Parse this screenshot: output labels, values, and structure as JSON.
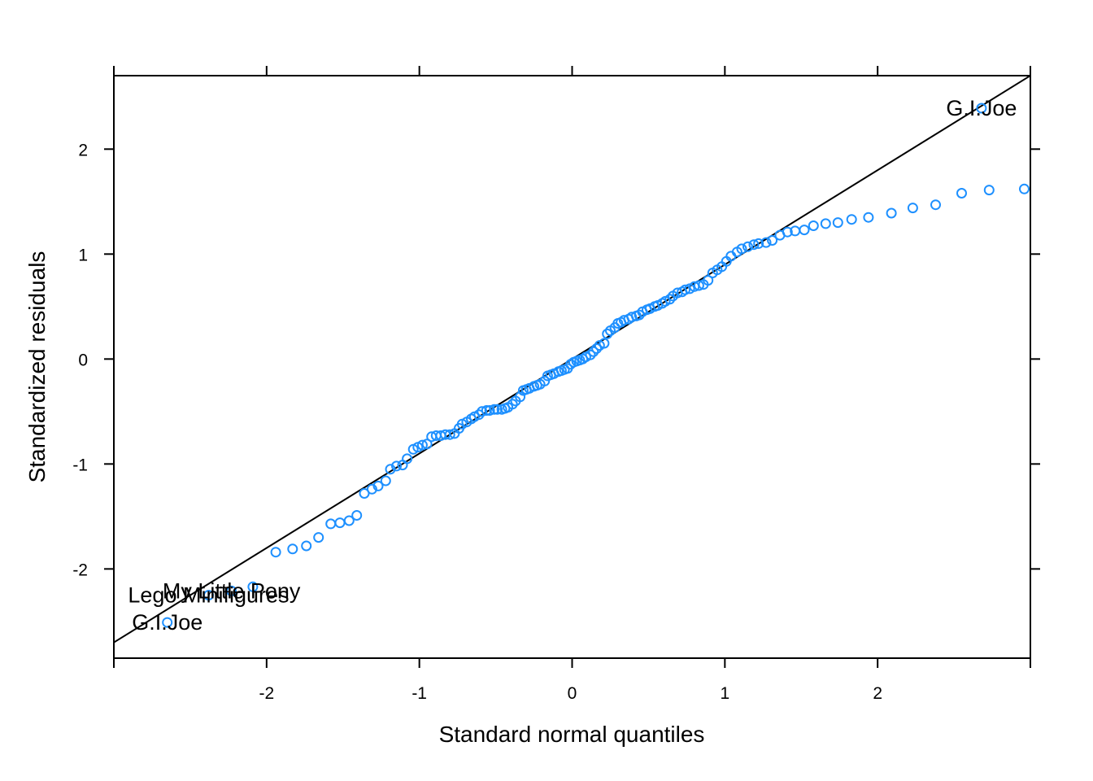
{
  "chart_data": {
    "type": "scatter",
    "title": "",
    "xlabel": "Standard normal quantiles",
    "ylabel": "Standardized residuals",
    "xlim": [
      -3.0,
      3.0
    ],
    "ylim": [
      -2.85,
      2.7
    ],
    "grid": false,
    "legend": "none",
    "x_ticks": [
      -2,
      -1,
      0,
      1,
      2
    ],
    "y_ticks": [
      -2,
      -1,
      0,
      1,
      2
    ],
    "x_tick_labels": [
      "-2",
      "-1",
      "0",
      "1",
      "2"
    ],
    "y_tick_labels": [
      "-2",
      "-1",
      "0",
      "1",
      "2"
    ],
    "reference_line": {
      "slope": 0.9,
      "intercept": 0.0
    },
    "colors": {
      "points": "#1e90ff",
      "line": "#000000",
      "frame": "#000000"
    },
    "points": [
      [
        -2.65,
        -2.51
      ],
      [
        -2.38,
        -2.25
      ],
      [
        -2.23,
        -2.21
      ],
      [
        -2.09,
        -2.17
      ],
      [
        -1.94,
        -1.84
      ],
      [
        -1.83,
        -1.81
      ],
      [
        -1.74,
        -1.78
      ],
      [
        -1.66,
        -1.7
      ],
      [
        -1.58,
        -1.57
      ],
      [
        -1.52,
        -1.56
      ],
      [
        -1.46,
        -1.54
      ],
      [
        -1.41,
        -1.49
      ],
      [
        -1.36,
        -1.28
      ],
      [
        -1.31,
        -1.24
      ],
      [
        -1.27,
        -1.21
      ],
      [
        -1.22,
        -1.16
      ],
      [
        -1.19,
        -1.05
      ],
      [
        -1.15,
        -1.02
      ],
      [
        -1.11,
        -1.01
      ],
      [
        -1.08,
        -0.95
      ],
      [
        -1.04,
        -0.86
      ],
      [
        -1.01,
        -0.84
      ],
      [
        -0.98,
        -0.82
      ],
      [
        -0.95,
        -0.81
      ],
      [
        -0.92,
        -0.74
      ],
      [
        -0.89,
        -0.73
      ],
      [
        -0.86,
        -0.73
      ],
      [
        -0.83,
        -0.72
      ],
      [
        -0.8,
        -0.72
      ],
      [
        -0.77,
        -0.71
      ],
      [
        -0.74,
        -0.66
      ],
      [
        -0.72,
        -0.62
      ],
      [
        -0.69,
        -0.6
      ],
      [
        -0.66,
        -0.57
      ],
      [
        -0.64,
        -0.55
      ],
      [
        -0.61,
        -0.53
      ],
      [
        -0.59,
        -0.5
      ],
      [
        -0.56,
        -0.49
      ],
      [
        -0.54,
        -0.49
      ],
      [
        -0.51,
        -0.48
      ],
      [
        -0.49,
        -0.48
      ],
      [
        -0.46,
        -0.48
      ],
      [
        -0.44,
        -0.47
      ],
      [
        -0.42,
        -0.46
      ],
      [
        -0.39,
        -0.43
      ],
      [
        -0.37,
        -0.4
      ],
      [
        -0.34,
        -0.36
      ],
      [
        -0.32,
        -0.3
      ],
      [
        -0.3,
        -0.29
      ],
      [
        -0.28,
        -0.28
      ],
      [
        -0.25,
        -0.26
      ],
      [
        -0.23,
        -0.25
      ],
      [
        -0.21,
        -0.24
      ],
      [
        -0.18,
        -0.21
      ],
      [
        -0.16,
        -0.16
      ],
      [
        -0.14,
        -0.15
      ],
      [
        -0.12,
        -0.14
      ],
      [
        -0.09,
        -0.12
      ],
      [
        -0.07,
        -0.11
      ],
      [
        -0.05,
        -0.1
      ],
      [
        -0.03,
        -0.09
      ],
      [
        -0.01,
        -0.05
      ],
      [
        0.01,
        -0.03
      ],
      [
        0.03,
        -0.02
      ],
      [
        0.05,
        -0.01
      ],
      [
        0.07,
        0.0
      ],
      [
        0.09,
        0.02
      ],
      [
        0.12,
        0.04
      ],
      [
        0.14,
        0.07
      ],
      [
        0.16,
        0.1
      ],
      [
        0.18,
        0.13
      ],
      [
        0.21,
        0.15
      ],
      [
        0.23,
        0.24
      ],
      [
        0.25,
        0.27
      ],
      [
        0.28,
        0.3
      ],
      [
        0.3,
        0.34
      ],
      [
        0.32,
        0.35
      ],
      [
        0.34,
        0.37
      ],
      [
        0.37,
        0.38
      ],
      [
        0.39,
        0.4
      ],
      [
        0.42,
        0.41
      ],
      [
        0.44,
        0.42
      ],
      [
        0.46,
        0.45
      ],
      [
        0.49,
        0.47
      ],
      [
        0.51,
        0.48
      ],
      [
        0.54,
        0.5
      ],
      [
        0.56,
        0.51
      ],
      [
        0.59,
        0.53
      ],
      [
        0.61,
        0.55
      ],
      [
        0.64,
        0.57
      ],
      [
        0.66,
        0.6
      ],
      [
        0.69,
        0.63
      ],
      [
        0.72,
        0.64
      ],
      [
        0.74,
        0.66
      ],
      [
        0.77,
        0.67
      ],
      [
        0.8,
        0.69
      ],
      [
        0.83,
        0.7
      ],
      [
        0.86,
        0.71
      ],
      [
        0.89,
        0.75
      ],
      [
        0.92,
        0.82
      ],
      [
        0.95,
        0.85
      ],
      [
        0.98,
        0.88
      ],
      [
        1.01,
        0.93
      ],
      [
        1.04,
        0.98
      ],
      [
        1.08,
        1.02
      ],
      [
        1.11,
        1.05
      ],
      [
        1.15,
        1.07
      ],
      [
        1.19,
        1.09
      ],
      [
        1.22,
        1.1
      ],
      [
        1.27,
        1.11
      ],
      [
        1.31,
        1.13
      ],
      [
        1.36,
        1.18
      ],
      [
        1.41,
        1.21
      ],
      [
        1.46,
        1.22
      ],
      [
        1.52,
        1.23
      ],
      [
        1.58,
        1.27
      ],
      [
        1.66,
        1.29
      ],
      [
        1.74,
        1.3
      ],
      [
        1.83,
        1.33
      ],
      [
        1.94,
        1.35
      ],
      [
        2.09,
        1.39
      ],
      [
        2.23,
        1.44
      ],
      [
        2.38,
        1.47
      ],
      [
        2.55,
        1.58
      ],
      [
        2.73,
        1.61
      ],
      [
        2.96,
        1.62
      ],
      [
        2.68,
        2.39
      ]
    ],
    "annotations": [
      {
        "text": "G.I.Joe",
        "x": 2.68,
        "y": 2.39
      },
      {
        "text": "My Little Pony",
        "x": -2.23,
        "y": -2.21
      },
      {
        "text": "Lego Minifigures",
        "x": -2.38,
        "y": -2.25
      },
      {
        "text": "G.I.Joe",
        "x": -2.65,
        "y": -2.51
      }
    ]
  }
}
